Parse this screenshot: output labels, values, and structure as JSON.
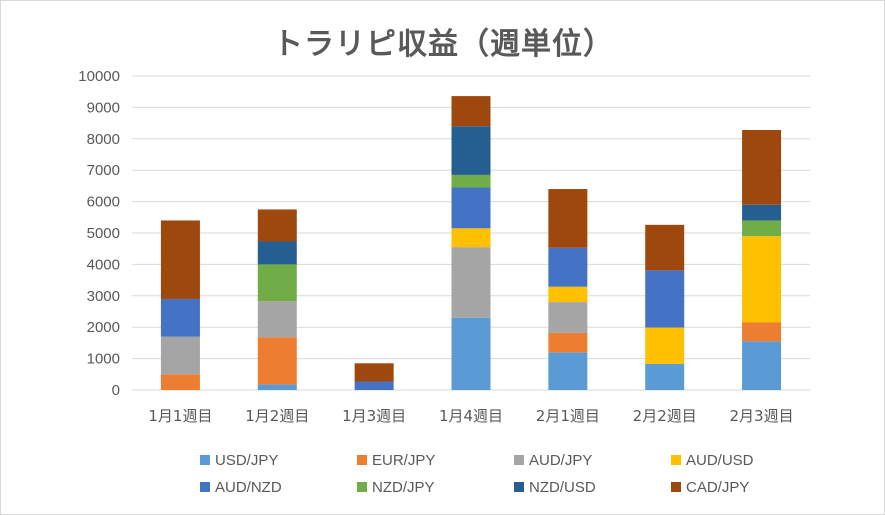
{
  "chart_data": {
    "type": "bar",
    "stacked": true,
    "title": "トラリピ収益（週単位）",
    "ylim": [
      0,
      10000
    ],
    "y_ticks": [
      "10000",
      "9000",
      "8000",
      "7000",
      "6000",
      "5000",
      "4000",
      "3000",
      "2000",
      "1000",
      "0"
    ],
    "categories": [
      "1月1週目",
      "1月2週目",
      "1月3週目",
      "1月4週目",
      "2月1週目",
      "2月2週目",
      "2月3週目"
    ],
    "series": [
      {
        "name": "USD/JPY",
        "color": "#5B9BD5",
        "values": [
          0,
          180,
          0,
          2300,
          1200,
          830,
          1550
        ]
      },
      {
        "name": "EUR/JPY",
        "color": "#ED7D31",
        "values": [
          500,
          1500,
          0,
          0,
          620,
          0,
          600
        ]
      },
      {
        "name": "AUD/JPY",
        "color": "#A5A5A5",
        "values": [
          1200,
          1150,
          0,
          2250,
          980,
          0,
          0
        ]
      },
      {
        "name": "AUD/USD",
        "color": "#FFC000",
        "values": [
          0,
          0,
          0,
          600,
          490,
          1160,
          2750
        ]
      },
      {
        "name": "AUD/NZD",
        "color": "#4472C4",
        "values": [
          1200,
          0,
          270,
          1300,
          1240,
          1820,
          0
        ]
      },
      {
        "name": "NZD/JPY",
        "color": "#70AD47",
        "values": [
          0,
          1170,
          0,
          400,
          0,
          0,
          500
        ]
      },
      {
        "name": "NZD/USD",
        "color": "#255E91",
        "values": [
          0,
          730,
          0,
          1550,
          0,
          0,
          500
        ]
      },
      {
        "name": "CAD/JPY",
        "color": "#9E480E",
        "values": [
          2500,
          1020,
          580,
          960,
          1870,
          1450,
          2380
        ]
      }
    ],
    "legend_position": "bottom",
    "grid": true
  }
}
